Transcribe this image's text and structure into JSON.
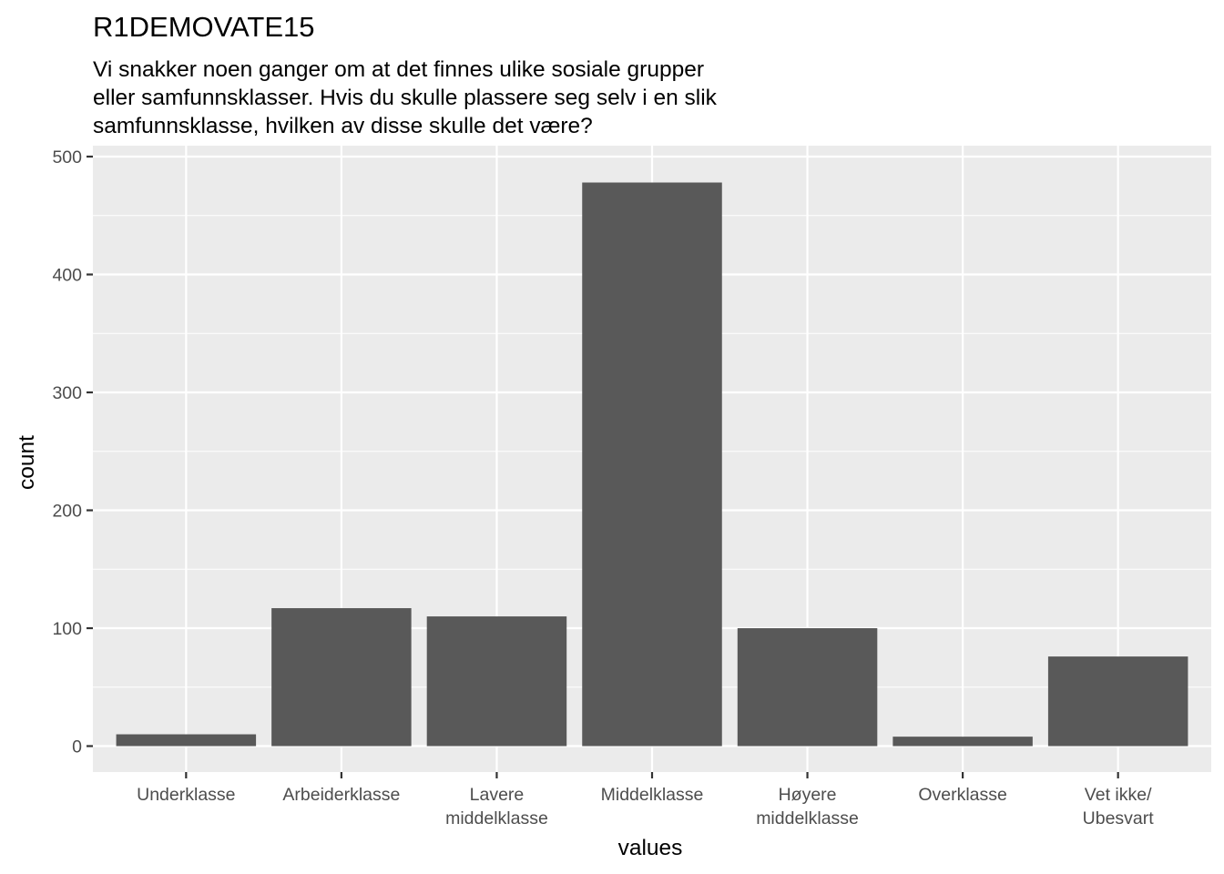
{
  "chart_data": {
    "type": "bar",
    "title": "R1DEMOVATE15",
    "subtitle": [
      "Vi snakker noen ganger om at det finnes ulike sosiale grupper",
      "eller samfunnsklasser. Hvis du skulle plassere seg selv i en slik",
      "samfunnsklasse, hvilken av disse skulle det være?"
    ],
    "xlabel": "values",
    "ylabel": "count",
    "categories": [
      [
        "Underklasse"
      ],
      [
        "Arbeiderklasse"
      ],
      [
        "Lavere",
        "middelklasse"
      ],
      [
        "Middelklasse"
      ],
      [
        "Høyere",
        "middelklasse"
      ],
      [
        "Overklasse"
      ],
      [
        "Vet ikke/",
        "Ubesvart"
      ]
    ],
    "values": [
      10,
      117,
      110,
      478,
      100,
      8,
      76
    ],
    "ylim": [
      -22,
      500
    ],
    "yticks": [
      0,
      100,
      200,
      300,
      400,
      500
    ],
    "grid": true,
    "legend": "none",
    "colors": {
      "panel_background": "#ebebeb",
      "grid_line": "#ffffff",
      "bar_fill": "#595959",
      "tick_text": "#4d4d4d",
      "tick_mark": "#333333"
    }
  }
}
